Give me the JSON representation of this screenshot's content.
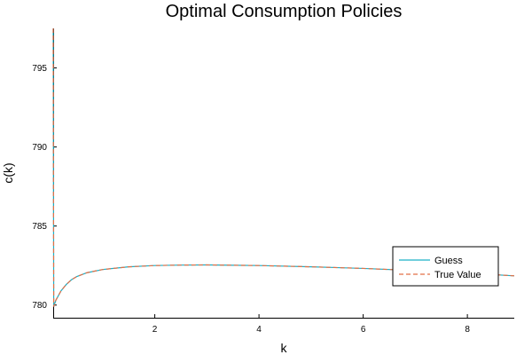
{
  "chart_data": {
    "type": "line",
    "title": "Optimal Consumption Policies",
    "xlabel": "k",
    "ylabel": "c(k)",
    "xlim": [
      0.05,
      8.9
    ],
    "ylim": [
      779.2,
      797.5
    ],
    "xticks": [
      2,
      4,
      6,
      8
    ],
    "yticks": [
      780,
      785,
      790,
      795
    ],
    "grid": false,
    "legend_position": "lower-right",
    "series": [
      {
        "name": "Guess",
        "color": "#1cb0c6",
        "style": "solid",
        "x": [
          0.05,
          0.06,
          0.1,
          0.2,
          0.3,
          0.4,
          0.5,
          0.7,
          1.0,
          1.5,
          2.0,
          2.5,
          3.0,
          3.5,
          4.0,
          5.0,
          6.0,
          7.0,
          8.0,
          8.9
        ],
        "y": [
          797.5,
          779.9,
          780.3,
          780.9,
          781.3,
          781.6,
          781.8,
          782.05,
          782.25,
          782.42,
          782.5,
          782.53,
          782.54,
          782.52,
          782.5,
          782.42,
          782.32,
          782.18,
          782.02,
          781.85
        ]
      },
      {
        "name": "True Value",
        "color": "#e26f46",
        "style": "dashed",
        "x": [
          0.05,
          0.06,
          0.1,
          0.2,
          0.3,
          0.4,
          0.5,
          0.7,
          1.0,
          1.5,
          2.0,
          2.5,
          3.0,
          3.5,
          4.0,
          5.0,
          6.0,
          7.0,
          8.0,
          8.9
        ],
        "y": [
          797.5,
          779.9,
          780.3,
          780.9,
          781.3,
          781.6,
          781.8,
          782.05,
          782.25,
          782.42,
          782.5,
          782.53,
          782.54,
          782.52,
          782.5,
          782.42,
          782.32,
          782.18,
          782.02,
          781.85
        ]
      }
    ]
  }
}
